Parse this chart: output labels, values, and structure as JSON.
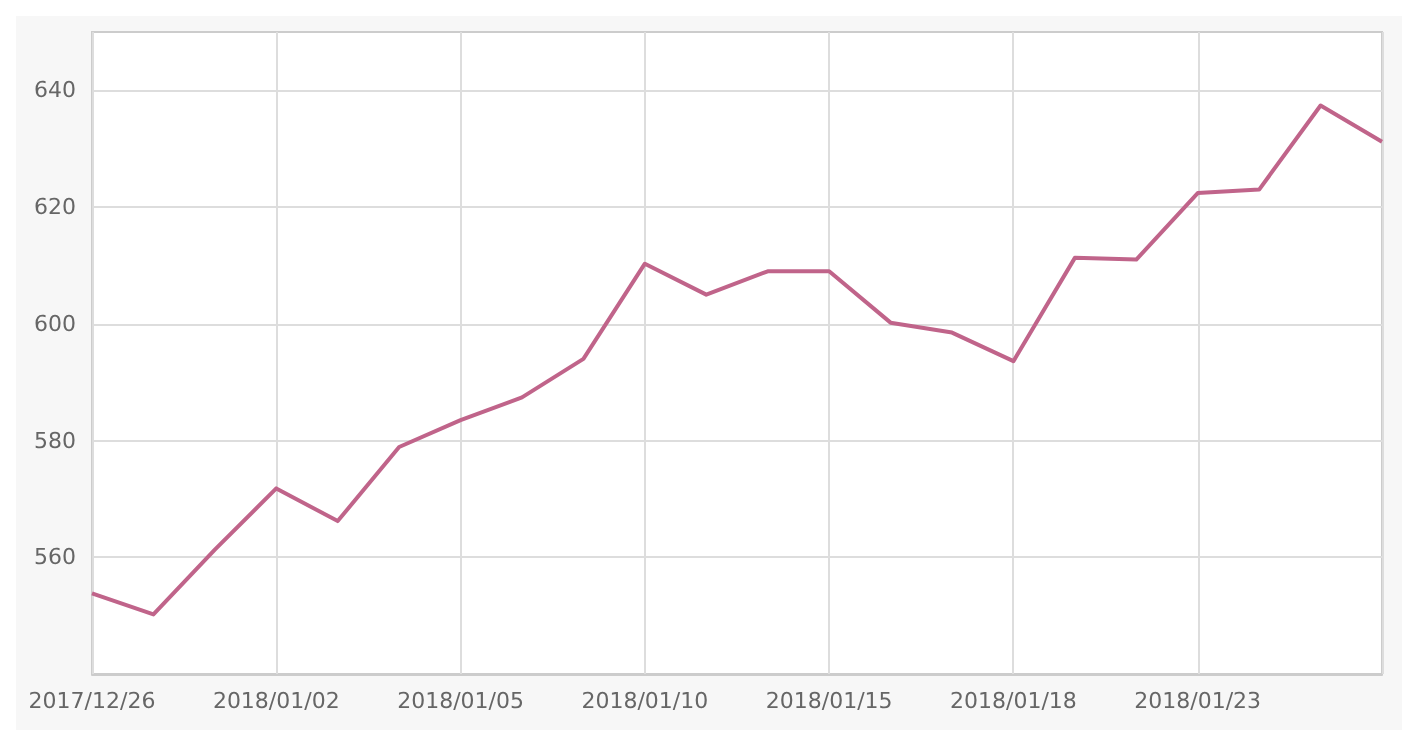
{
  "chart_data": {
    "type": "line",
    "categories": [
      "2017/12/26",
      null,
      null,
      "2018/01/02",
      null,
      null,
      "2018/01/05",
      null,
      null,
      "2018/01/10",
      null,
      null,
      "2018/01/15",
      null,
      null,
      "2018/01/18",
      null,
      null,
      "2018/01/23",
      null,
      null,
      null
    ],
    "series": [
      {
        "color": "#c0648a",
        "values": [
          553.8,
          550.2,
          561.3,
          571.8,
          566.2,
          578.9,
          583.5,
          587.4,
          594,
          610.3,
          605,
          609,
          609,
          600.2,
          598.5,
          593.6,
          611.3,
          611,
          622.4,
          623,
          637.4,
          631.2
        ]
      }
    ],
    "ylim": [
      540,
      650
    ],
    "yticks": [
      560,
      580,
      600,
      620,
      640
    ],
    "grid": true,
    "marker": "none"
  }
}
